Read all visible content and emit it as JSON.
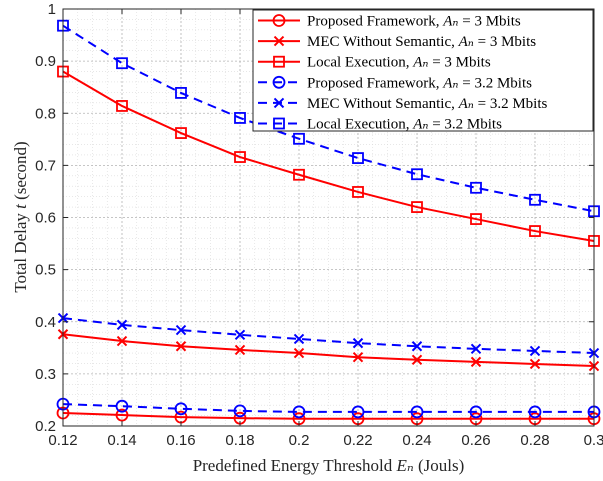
{
  "chart_data": {
    "type": "line",
    "xlabel": "Predefined Energy Threshold Eₙ (Jouls)",
    "ylabel": "Total Delay t (second)",
    "xlim": [
      0.12,
      0.3
    ],
    "ylim": [
      0.2,
      1
    ],
    "x_tick_labels": [
      "0.12",
      "0.14",
      "0.16",
      "0.18",
      "0.2",
      "0.22",
      "0.24",
      "0.26",
      "0.28",
      "0.3"
    ],
    "y_tick_labels": [
      "0.2",
      "0.3",
      "0.4",
      "0.5",
      "0.6",
      "0.7",
      "0.8",
      "0.9",
      "1"
    ],
    "grid": true,
    "minor_grid": true,
    "legend_position": "top-right",
    "x": [
      0.12,
      0.14,
      0.16,
      0.18,
      0.2,
      0.22,
      0.24,
      0.26,
      0.28,
      0.3
    ],
    "series": [
      {
        "name": "Proposed Framework, Aₙ = 3 Mbits",
        "color": "#ff0000",
        "marker": "circle",
        "line_style": "solid",
        "values": [
          0.225,
          0.221,
          0.217,
          0.215,
          0.214,
          0.214,
          0.214,
          0.214,
          0.214,
          0.214
        ]
      },
      {
        "name": "MEC Without Semantic, Aₙ = 3 Mbits",
        "color": "#ff0000",
        "marker": "x",
        "line_style": "solid",
        "values": [
          0.376,
          0.363,
          0.353,
          0.346,
          0.34,
          0.332,
          0.327,
          0.323,
          0.319,
          0.315
        ]
      },
      {
        "name": "Local Execution, Aₙ = 3 Mbits",
        "color": "#ff0000",
        "marker": "square",
        "line_style": "solid",
        "values": [
          0.88,
          0.814,
          0.762,
          0.716,
          0.682,
          0.649,
          0.62,
          0.597,
          0.574,
          0.555
        ]
      },
      {
        "name": "Proposed Framework, Aₙ = 3.2 Mbits",
        "color": "#0000ff",
        "marker": "circle",
        "line_style": "dashed",
        "values": [
          0.242,
          0.238,
          0.233,
          0.229,
          0.227,
          0.227,
          0.227,
          0.227,
          0.227,
          0.227
        ]
      },
      {
        "name": "MEC Without Semantic, Aₙ = 3.2 Mbits",
        "color": "#0000ff",
        "marker": "x",
        "line_style": "dashed",
        "values": [
          0.407,
          0.394,
          0.384,
          0.375,
          0.367,
          0.359,
          0.353,
          0.348,
          0.344,
          0.34
        ]
      },
      {
        "name": "Local Execution, Aₙ = 3.2 Mbits",
        "color": "#0000ff",
        "marker": "square",
        "line_style": "dashed",
        "values": [
          0.968,
          0.896,
          0.839,
          0.791,
          0.751,
          0.714,
          0.683,
          0.657,
          0.634,
          0.612
        ]
      }
    ]
  }
}
